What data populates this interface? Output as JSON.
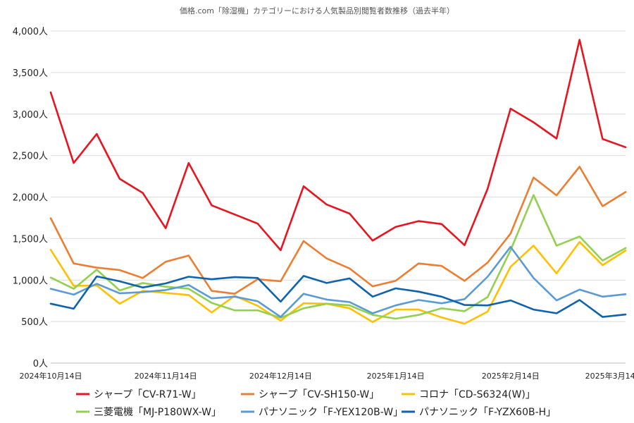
{
  "chart_data": {
    "type": "line",
    "title": "価格.com「除湿機」カテゴリーにおける人気製品別閲覧者数推移（過去半年）",
    "xlabel": "",
    "ylabel": "",
    "ylim": [
      0,
      4000
    ],
    "y_ticks": [
      "0人",
      "500人",
      "1,000人",
      "1,500人",
      "2,000人",
      "2,500人",
      "3,000人",
      "3,500人",
      "4,000人"
    ],
    "x_ticks": [
      "2024年10月14日",
      "2024年11月14日",
      "2024年12月14日",
      "2025年1月14日",
      "2025年2月14日",
      "2025年3月14日"
    ],
    "grid": true,
    "legend": "bottom",
    "series": [
      {
        "name": "シャープ「CV-R71-W」",
        "color": "#e8141e",
        "values": [
          3260,
          2410,
          2760,
          2220,
          2050,
          1625,
          2410,
          1900,
          1790,
          1680,
          1360,
          2130,
          1910,
          1800,
          1475,
          1640,
          1710,
          1675,
          1420,
          2100,
          3065,
          2900,
          2705,
          3895,
          2700,
          2600
        ]
      },
      {
        "name": "シャープ「CV-SH150-W」",
        "color": "#ed7d31",
        "values": [
          1745,
          1200,
          1150,
          1120,
          1025,
          1220,
          1295,
          870,
          835,
          1010,
          985,
          1470,
          1260,
          1140,
          925,
          990,
          1200,
          1170,
          990,
          1210,
          1560,
          2235,
          2020,
          2365,
          1890,
          2060
        ]
      },
      {
        "name": "コロナ「CD-S6324(W)」",
        "color": "#ffc000",
        "values": [
          1365,
          930,
          935,
          715,
          870,
          845,
          820,
          610,
          810,
          690,
          510,
          720,
          715,
          660,
          495,
          645,
          645,
          550,
          475,
          620,
          1160,
          1415,
          1080,
          1460,
          1180,
          1355
        ]
      },
      {
        "name": "三菱電機「MJ-P180WX-W」",
        "color": "#92d050",
        "values": [
          1030,
          895,
          1125,
          875,
          965,
          920,
          895,
          725,
          635,
          635,
          545,
          660,
          715,
          695,
          580,
          535,
          580,
          660,
          625,
          795,
          1360,
          2025,
          1415,
          1525,
          1235,
          1385
        ]
      },
      {
        "name": "パナソニック「F-YEX120B-W」",
        "color": "#5b9bd5",
        "values": [
          895,
          825,
          955,
          840,
          855,
          880,
          940,
          780,
          800,
          745,
          555,
          835,
          765,
          735,
          600,
          695,
          760,
          720,
          770,
          1040,
          1400,
          1025,
          755,
          885,
          800,
          830
        ]
      },
      {
        "name": "パナソニック「F-YZX60B-H」",
        "color": "#0f62ad",
        "values": [
          715,
          655,
          1045,
          985,
          910,
          960,
          1040,
          1010,
          1035,
          1025,
          740,
          1050,
          965,
          1020,
          800,
          900,
          860,
          800,
          700,
          695,
          755,
          645,
          600,
          760,
          555,
          585
        ]
      }
    ]
  }
}
